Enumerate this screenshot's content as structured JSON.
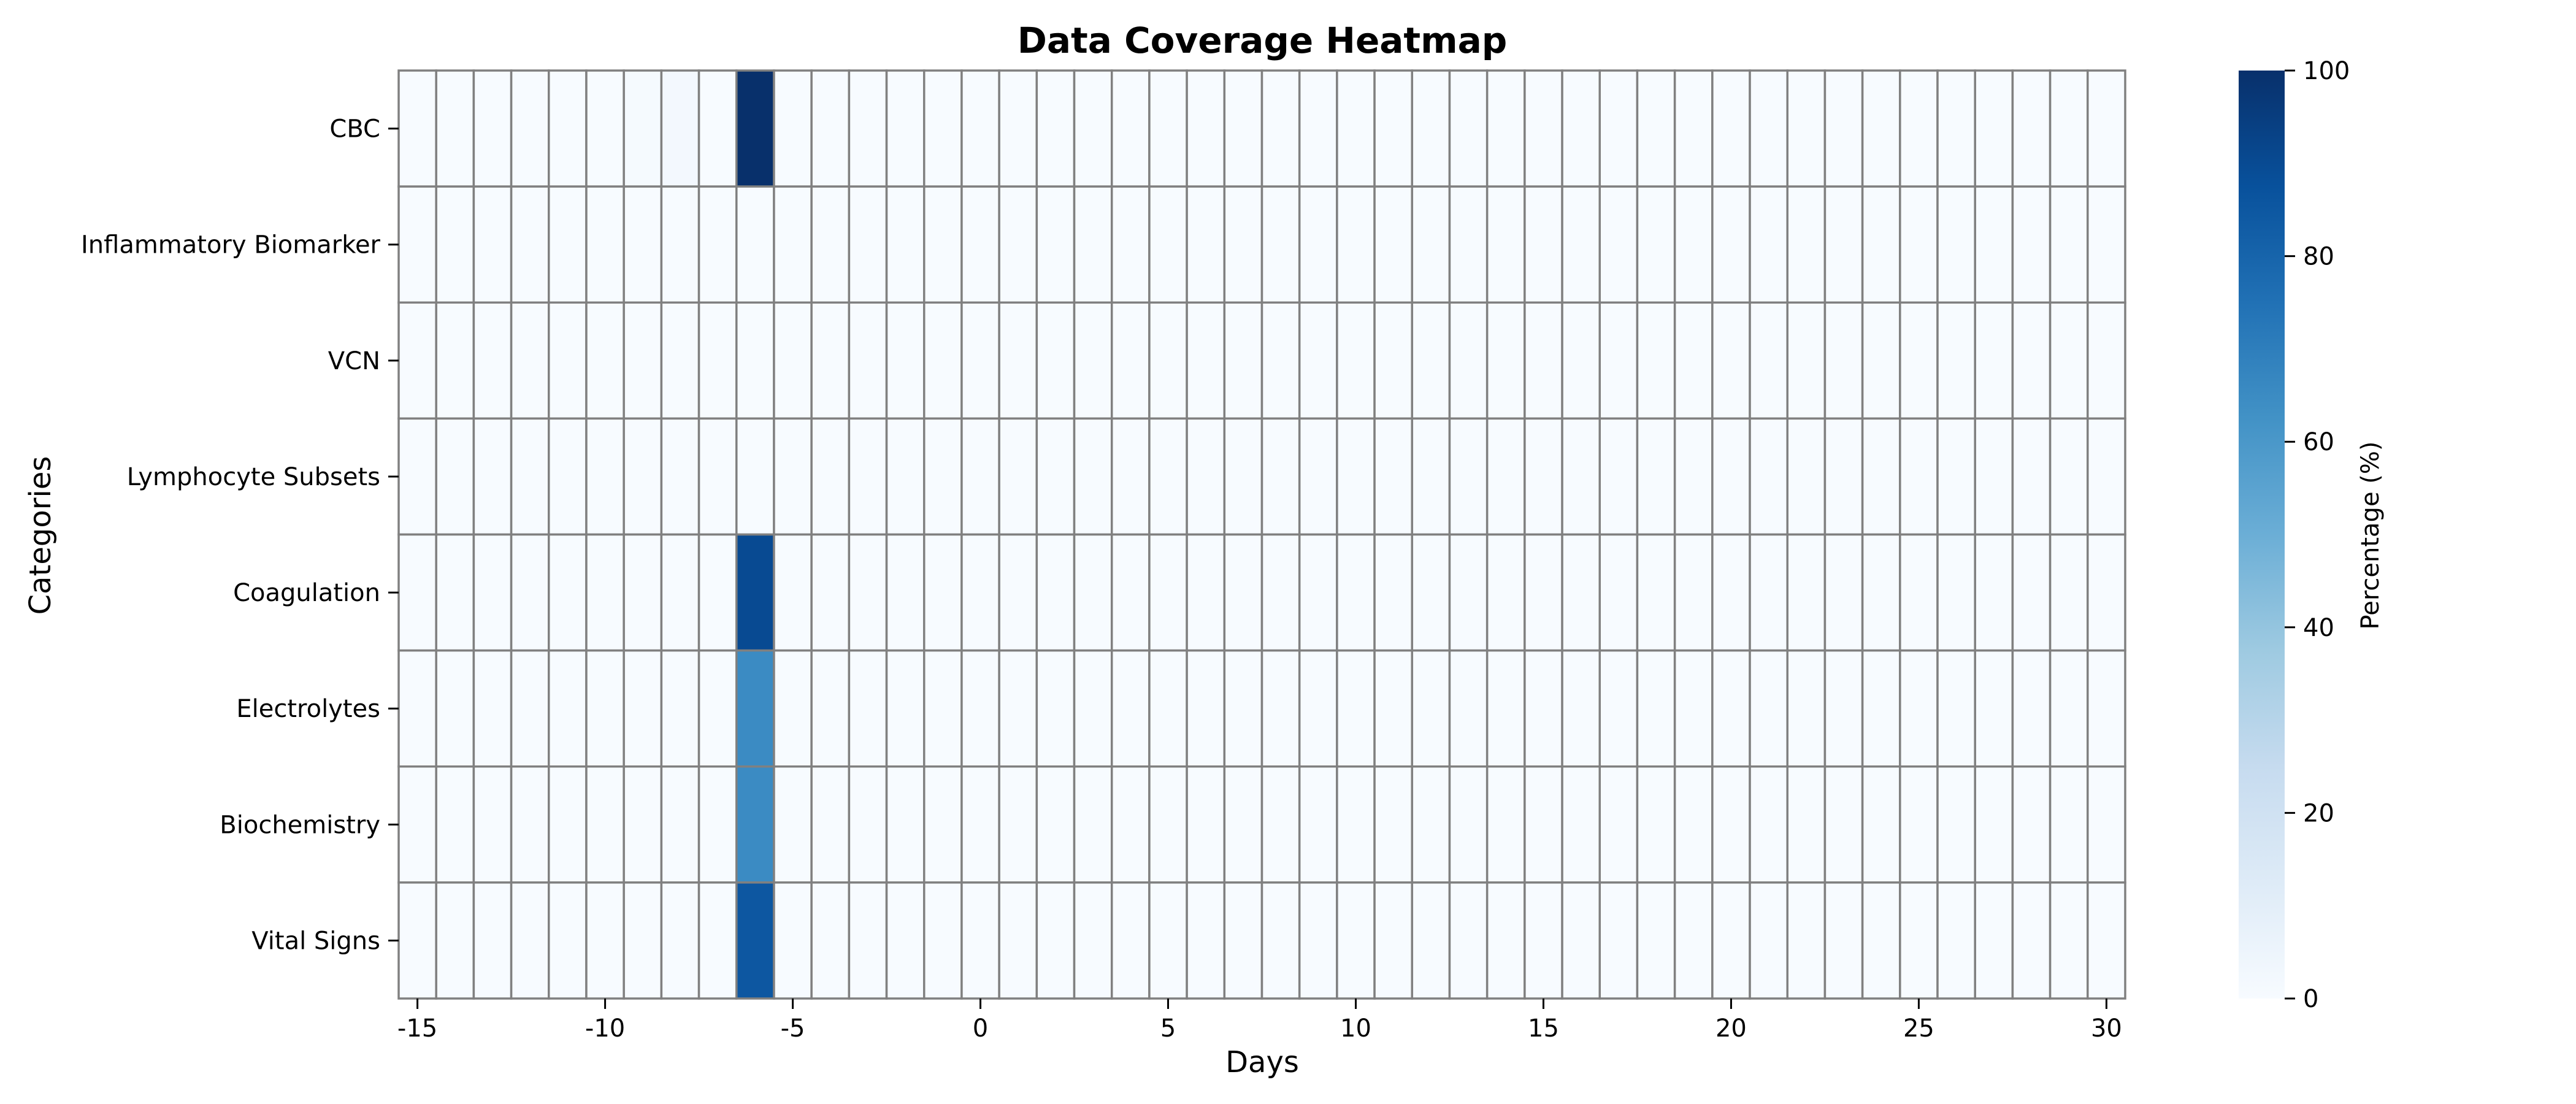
{
  "chart_data": {
    "type": "heatmap",
    "title": "Data Coverage Heatmap",
    "xlabel": "Days",
    "ylabel": "Categories",
    "x_start_day": -15,
    "x_end_day": 30,
    "xticks": [
      -15,
      -10,
      -5,
      0,
      5,
      10,
      15,
      20,
      25,
      30
    ],
    "xtick_labels": [
      "-15",
      "-10",
      "-5",
      "0",
      "5",
      "10",
      "15",
      "20",
      "25",
      "30"
    ],
    "categories": [
      "CBC",
      "Inflammatory Biomarker",
      "VCN",
      "Lymphocyte Subsets",
      "Coagulation",
      "Electrolytes",
      "Biochemistry",
      "Vital Signs"
    ],
    "sparse_values": [
      {
        "category": "CBC",
        "day": -6,
        "value": 100
      },
      {
        "category": "CBC",
        "day": -8,
        "value": 2
      },
      {
        "category": "CBC",
        "day": -9,
        "value": 1
      },
      {
        "category": "Coagulation",
        "day": -6,
        "value": 90
      },
      {
        "category": "Electrolytes",
        "day": -6,
        "value": 65
      },
      {
        "category": "Biochemistry",
        "day": -6,
        "value": 65
      },
      {
        "category": "Vital Signs",
        "day": -6,
        "value": 85
      }
    ],
    "default_value": 0,
    "colorbar": {
      "label": "Percentage (%)",
      "min": 0,
      "max": 100,
      "ticks": [
        0,
        20,
        40,
        60,
        80,
        100
      ],
      "colormap": "Blues"
    },
    "grid": true,
    "cell_border_color": "#808080"
  }
}
